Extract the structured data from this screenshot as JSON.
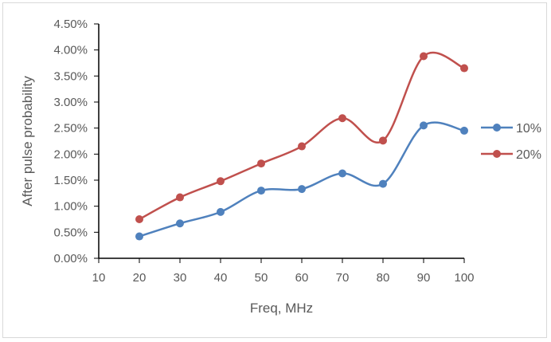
{
  "chart_data": {
    "type": "line",
    "title": "",
    "xlabel": "Freq, MHz",
    "ylabel": "After pulse probability",
    "x": [
      20,
      30,
      40,
      50,
      60,
      70,
      80,
      90,
      100
    ],
    "xlim": [
      10,
      100
    ],
    "xticks": [
      "10",
      "20",
      "30",
      "40",
      "50",
      "60",
      "70",
      "80",
      "90",
      "100"
    ],
    "ylim": [
      0,
      4.5
    ],
    "yticks": [
      "0.00%",
      "0.50%",
      "1.00%",
      "1.50%",
      "2.00%",
      "2.50%",
      "3.00%",
      "3.50%",
      "4.00%",
      "4.50%"
    ],
    "grid": false,
    "legend": "right",
    "smooth": true,
    "series": [
      {
        "name": "10%",
        "color": "#4f81bd",
        "values": [
          0.42,
          0.67,
          0.89,
          1.3,
          1.33,
          1.63,
          1.43,
          2.55,
          2.45
        ]
      },
      {
        "name": "20%",
        "color": "#c0504d",
        "values": [
          0.75,
          1.17,
          1.48,
          1.82,
          2.15,
          2.69,
          2.26,
          3.88,
          3.65
        ]
      }
    ]
  }
}
